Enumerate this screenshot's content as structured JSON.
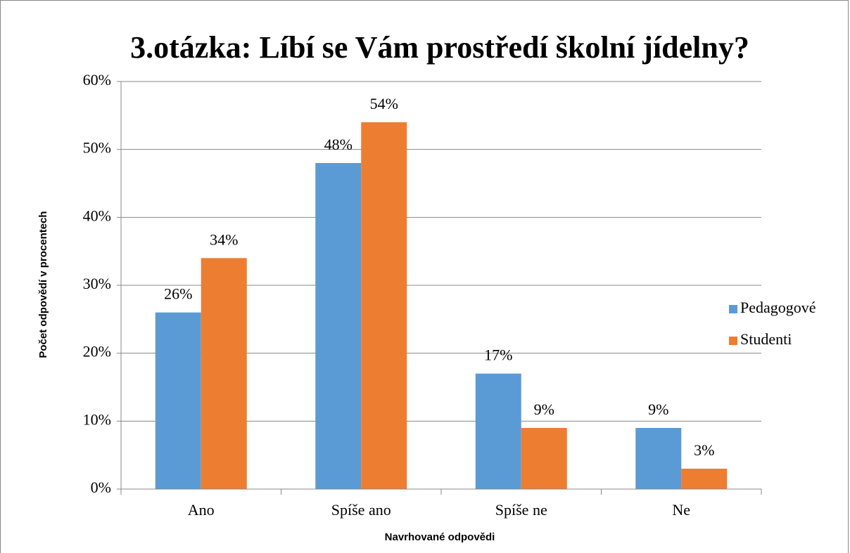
{
  "chart_data": {
    "type": "bar",
    "title": "3.otázka: Líbí se Vám prostředí školní jídelny?",
    "x_label": "Navrhované odpovědi",
    "y_label": "Počet odpovědí v procentech",
    "categories": [
      "Ano",
      "Spíše ano",
      "Spíše ne",
      "Ne"
    ],
    "series": [
      {
        "name": "Pedagogové",
        "color": "#5b9bd5",
        "values": [
          26,
          48,
          17,
          9
        ],
        "value_labels": [
          "26%",
          "48%",
          "17%",
          "9%"
        ]
      },
      {
        "name": "Studenti",
        "color": "#ed7d31",
        "values": [
          34,
          54,
          9,
          3
        ],
        "value_labels": [
          "34%",
          "54%",
          "9%",
          "3%"
        ]
      }
    ],
    "ylim": [
      0,
      60
    ],
    "yticks": [
      {
        "value": 0,
        "label": "0%"
      },
      {
        "value": 10,
        "label": "10%"
      },
      {
        "value": 20,
        "label": "20%"
      },
      {
        "value": 30,
        "label": "30%"
      },
      {
        "value": 40,
        "label": "40%"
      },
      {
        "value": 50,
        "label": "50%"
      },
      {
        "value": 60,
        "label": "60%"
      }
    ],
    "grid": true,
    "legend": "right"
  }
}
